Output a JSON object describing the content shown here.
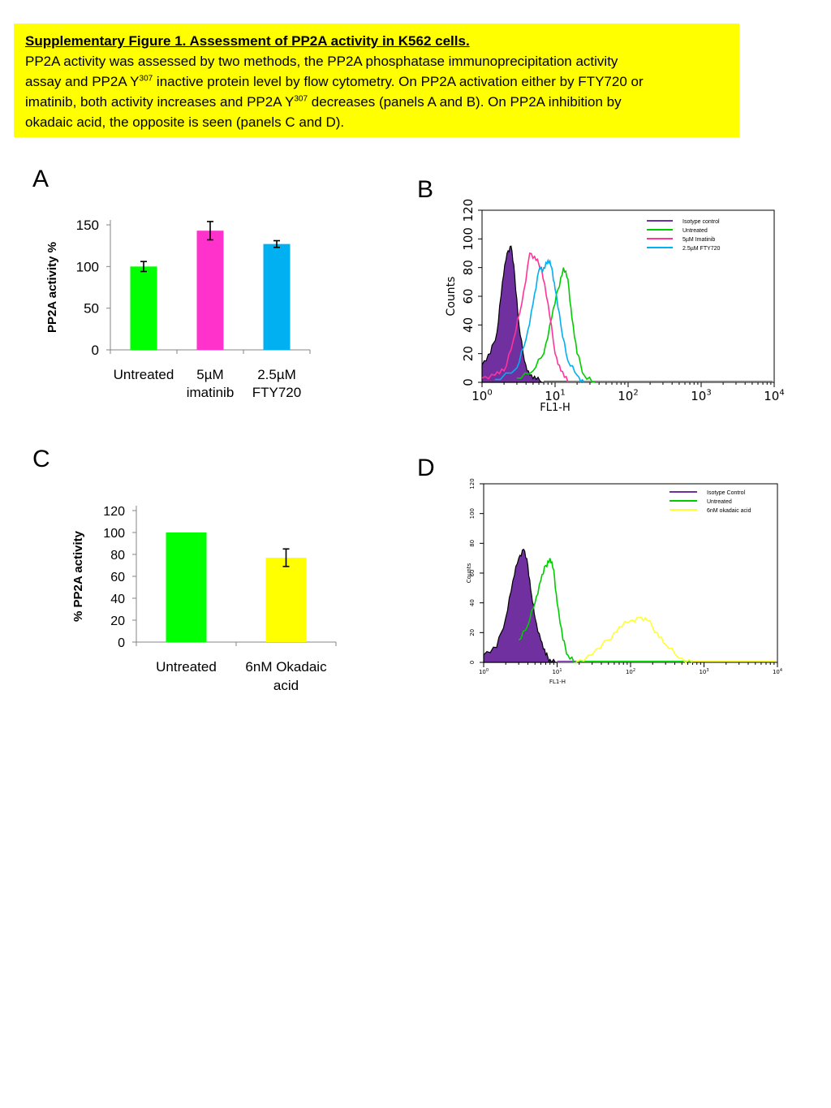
{
  "caption": {
    "title": "Supplementary Figure 1. Assessment of PP2A activity in K562 cells.",
    "line1": "PP2A activity was assessed by two methods, the PP2A phosphatase immunoprecipitation activity",
    "line2a": "assay and PP2A Y",
    "line2sup": "307",
    "line2b": " inactive protein level by flow cytometry. On PP2A activation either by FTY720 or",
    "line3a": "imatinib, both activity increases and PP2A Y",
    "line3sup": "307",
    "line3b": " decreases (panels A and B). On PP2A inhibition by",
    "line4": "okadaic acid, the opposite is seen (panels C and D)."
  },
  "panel_labels": {
    "a": "A",
    "b": "B",
    "c": "C",
    "d": "D"
  },
  "chart_data": [
    {
      "panel": "A",
      "type": "bar",
      "categories": [
        "Untreated",
        "5µM imatinib",
        "2.5µM FTY720"
      ],
      "category_lines": [
        [
          "Untreated"
        ],
        [
          "5µM",
          "imatinib"
        ],
        [
          "2.5µM",
          "FTY720"
        ]
      ],
      "values": [
        100,
        143,
        127
      ],
      "errors": [
        6,
        11,
        4
      ],
      "colors": [
        "#00ff00",
        "#ff33cc",
        "#00b0f0"
      ],
      "ylabel": "PP2A activity %",
      "ylim": [
        0,
        150
      ],
      "yticks": [
        0,
        50,
        100,
        150
      ]
    },
    {
      "panel": "C",
      "type": "bar",
      "categories": [
        "Untreated",
        "6nM Okadaic acid"
      ],
      "category_lines": [
        [
          "Untreated"
        ],
        [
          "6nM Okadaic",
          "acid"
        ]
      ],
      "values": [
        100,
        77
      ],
      "errors": [
        0,
        8
      ],
      "colors": [
        "#00ff00",
        "#ffff00"
      ],
      "ylabel": "% PP2A activity",
      "ylim": [
        0,
        120
      ],
      "yticks": [
        0,
        20,
        40,
        60,
        80,
        100,
        120
      ]
    },
    {
      "panel": "B",
      "type": "line",
      "xlabel": "FL1-H",
      "ylabel": "Counts",
      "xscale": "log",
      "xlim": [
        1,
        10000
      ],
      "ylim": [
        0,
        120
      ],
      "xtick_base": "10",
      "xtick_exp": [
        "0",
        "1",
        "2",
        "3",
        "4"
      ],
      "yticks": [
        0,
        20,
        40,
        60,
        80,
        100,
        120
      ],
      "series": [
        {
          "name": "Isotype control",
          "color": "#7030a0",
          "filled": true,
          "x": [
            1.0,
            1.3,
            1.6,
            1.9,
            2.2,
            2.5,
            2.8,
            3.2,
            3.8,
            4.5,
            5.5,
            7.0
          ],
          "y": [
            12,
            20,
            35,
            70,
            90,
            95,
            75,
            40,
            15,
            5,
            2,
            0
          ]
        },
        {
          "name": "Untreated",
          "color": "#00cc00",
          "filled": false,
          "x": [
            3.0,
            5.0,
            7.0,
            9.0,
            11.0,
            13.0,
            15.0,
            17.0,
            20.0,
            25.0,
            35.0
          ],
          "y": [
            3,
            8,
            20,
            45,
            65,
            80,
            72,
            45,
            20,
            5,
            0
          ]
        },
        {
          "name": "5µM Imatinib",
          "color": "#ff3399",
          "filled": false,
          "x": [
            1.0,
            1.5,
            2.0,
            2.7,
            3.5,
            4.5,
            5.5,
            6.5,
            8.0,
            10.0,
            12.0,
            15.0
          ],
          "y": [
            3,
            5,
            8,
            30,
            55,
            90,
            85,
            80,
            55,
            20,
            8,
            0
          ]
        },
        {
          "name": "2.5µM FTY720",
          "color": "#00b0f0",
          "filled": false,
          "x": [
            1.5,
            3.0,
            4.0,
            5.0,
            6.0,
            7.0,
            8.0,
            9.0,
            10.0,
            12.0,
            15.0,
            20.0,
            25.0
          ],
          "y": [
            2,
            10,
            30,
            55,
            78,
            80,
            85,
            80,
            65,
            40,
            15,
            5,
            0
          ]
        }
      ]
    },
    {
      "panel": "D",
      "type": "line",
      "xlabel": "FL1-H",
      "ylabel": "Counts",
      "xscale": "log",
      "xlim": [
        1,
        10000
      ],
      "ylim": [
        0,
        120
      ],
      "xtick_base": "10",
      "xtick_exp": [
        "0",
        "1",
        "2",
        "3",
        "4"
      ],
      "yticks": [
        0,
        20,
        40,
        60,
        80,
        100,
        120
      ],
      "series": [
        {
          "name": "Isotype Control",
          "color": "#7030a0",
          "filled": true,
          "x": [
            1.0,
            1.5,
            2.0,
            2.5,
            3.0,
            3.5,
            4.0,
            4.5,
            5.0,
            6.0,
            7.0,
            8.0,
            10.0
          ],
          "y": [
            5,
            10,
            30,
            55,
            70,
            76,
            65,
            45,
            30,
            15,
            5,
            2,
            0
          ]
        },
        {
          "name": "Untreated",
          "color": "#00cc00",
          "filled": false,
          "x": [
            3.0,
            4.0,
            5.0,
            6.0,
            7.0,
            8.0,
            9.0,
            10.0,
            12.0,
            14.0,
            18.0
          ],
          "y": [
            15,
            25,
            40,
            55,
            65,
            70,
            62,
            40,
            15,
            5,
            0
          ]
        },
        {
          "name": "6nM okadaic acid",
          "color": "#ffff33",
          "filled": false,
          "x": [
            18.0,
            30.0,
            50.0,
            70.0,
            100.0,
            130.0,
            170.0,
            230.0,
            300.0,
            450.0,
            700.0
          ],
          "y": [
            0,
            5,
            15,
            24,
            28,
            30,
            28,
            20,
            12,
            3,
            0
          ]
        }
      ]
    }
  ]
}
